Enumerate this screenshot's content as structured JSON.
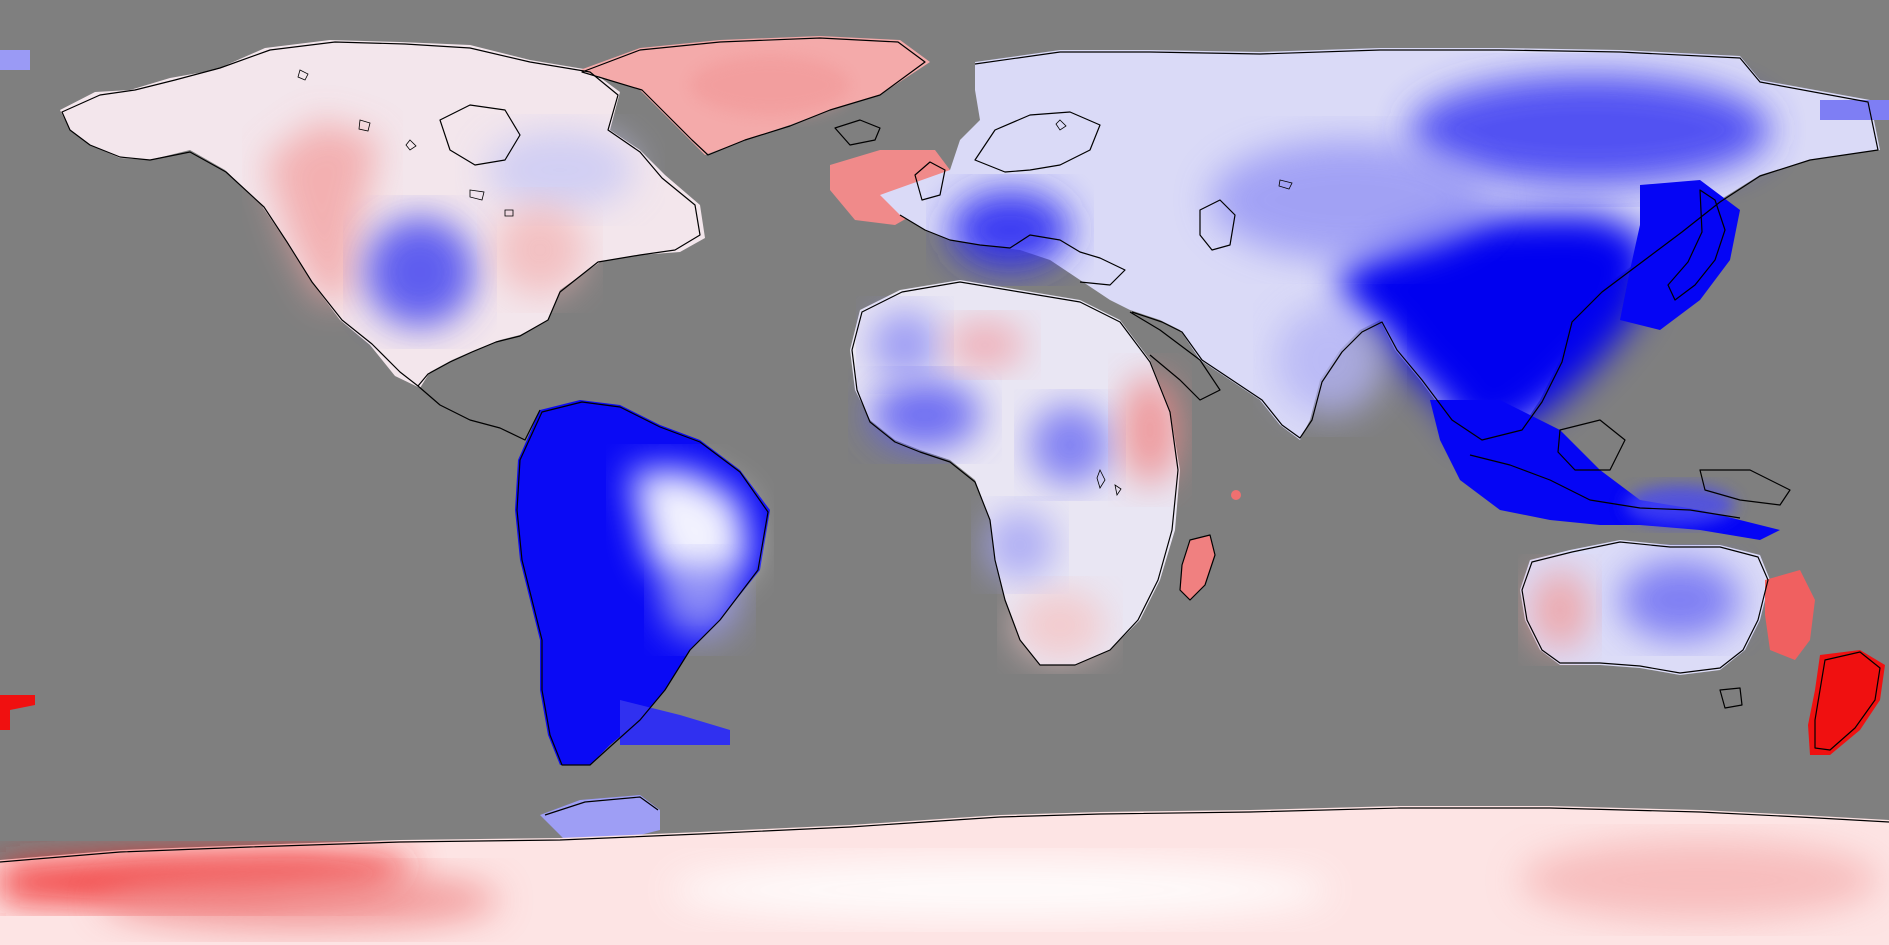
{
  "map": {
    "projection": "equirectangular",
    "background_color": "#7f7f7f",
    "coastline_color": "#000000",
    "colorscale": {
      "negative": "#0000ff",
      "neutral": "#ffffff",
      "positive": "#ff0000"
    },
    "masked_ocean": true,
    "gridlines": false,
    "legend": "none",
    "visible_text": "none"
  }
}
